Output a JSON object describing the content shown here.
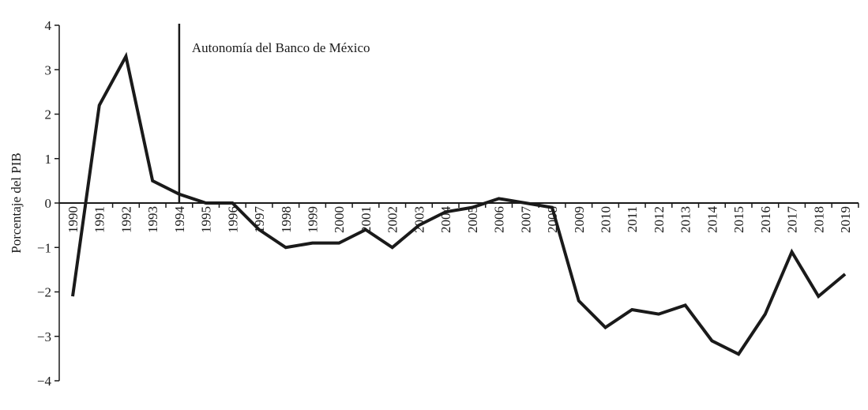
{
  "chart_data": {
    "type": "line",
    "y_label": "Porcentaje del PIB",
    "annotation": {
      "text": "Autonomía del Banco de México",
      "x": "1994"
    },
    "categories": [
      "1990",
      "1991",
      "1992",
      "1993",
      "1994",
      "1995",
      "1996",
      "1997",
      "1998",
      "1999",
      "2000",
      "2001",
      "2002",
      "2003",
      "2004",
      "2005",
      "2006",
      "2007",
      "2008",
      "2009",
      "2010",
      "2011",
      "2012",
      "2013",
      "2014",
      "2015",
      "2016",
      "2017",
      "2018",
      "2019"
    ],
    "values": [
      -2.1,
      2.2,
      3.3,
      0.5,
      0.2,
      0.0,
      0.0,
      -0.6,
      -1.0,
      -0.9,
      -0.9,
      -0.6,
      -1.0,
      -0.5,
      -0.2,
      -0.1,
      0.1,
      0.0,
      -0.1,
      -2.2,
      -2.8,
      -2.4,
      -2.5,
      -2.3,
      -3.1,
      -3.4,
      -2.5,
      -1.1,
      -2.1,
      -1.6
    ],
    "color": "#1a1a1a",
    "ylim": [
      -4,
      4
    ],
    "yticks": [
      {
        "value": -4,
        "label": "−4"
      },
      {
        "value": -3,
        "label": "−3"
      },
      {
        "value": -2,
        "label": "−2"
      },
      {
        "value": -1,
        "label": "−1"
      },
      0,
      1,
      2,
      3,
      4
    ]
  }
}
